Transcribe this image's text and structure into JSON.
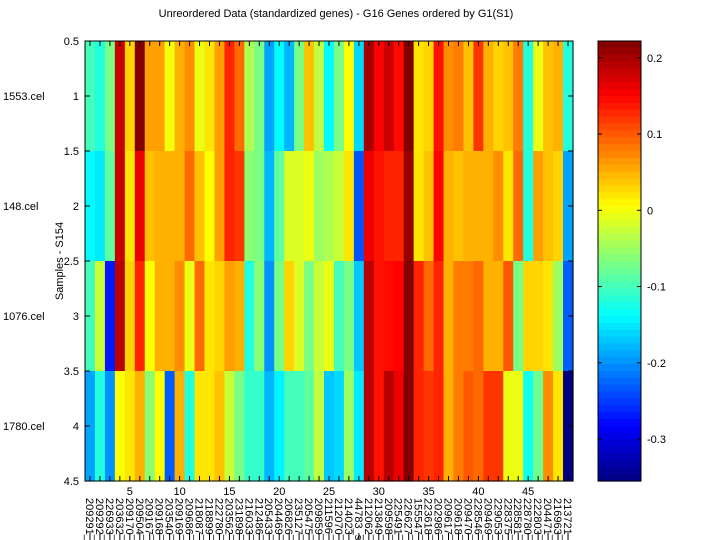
{
  "chart_data": {
    "type": "heatmap",
    "title": "Unreordered Data (standardized genes) - G16 Genes ordered by G1(S1)",
    "ylabel": "Samples - S154",
    "xlabel": "",
    "rows": [
      "1553.cel",
      "148.cel",
      "1076.cel",
      "1780.cel"
    ],
    "columns": [
      "209291_",
      "209292_",
      "226933_",
      "203632_",
      "209170_",
      "209504_",
      "209167_",
      "209168_",
      "203540_",
      "209169_",
      "209686_",
      "218087_",
      "218899_",
      "222780_",
      "203562_",
      "231898_",
      "216033_",
      "212486_",
      "205433_",
      "204469_",
      "206826_",
      "235127_",
      "205475_",
      "209859_",
      "211596_",
      "212070_",
      "214023_",
      "44783_s",
      "212062_",
      "213849_",
      "209598_",
      "225491_",
      "226627_",
      "155547_",
      "223618_",
      "202986_",
      "209617_",
      "209618_",
      "209470_",
      "228546_",
      "209469_",
      "229053_",
      "228375_",
      "228581_",
      "228780_",
      "222803_",
      "204471_",
      "216963_",
      "213721_"
    ],
    "x_ticks": [
      5,
      10,
      15,
      20,
      25,
      30,
      35,
      40,
      45
    ],
    "y_ticks": [
      "0.5",
      "1",
      "1.5",
      "2",
      "2.5",
      "3",
      "3.5",
      "4",
      "4.5"
    ],
    "y_tick_values": [
      0.5,
      1,
      1.5,
      2,
      2.5,
      3,
      3.5,
      4,
      4.5
    ],
    "colorbar": {
      "ticks": [
        "0.2",
        "0.1",
        "0",
        "-0.1",
        "-0.2",
        "-0.3"
      ],
      "tick_values": [
        0.2,
        0.1,
        0,
        -0.1,
        -0.2,
        -0.3
      ],
      "range": [
        -0.355,
        0.222
      ],
      "colormap": "jet"
    },
    "values": [
      [
        -0.1,
        -0.12,
        -0.07,
        0.18,
        0.03,
        0.22,
        0.06,
        0.06,
        0.0,
        0.05,
        0.07,
        -0.005,
        0.02,
        0.06,
        0.13,
        0.09,
        -0.04,
        -0.07,
        -0.19,
        -0.14,
        -0.18,
        -0.07,
        0.04,
        -0.03,
        -0.14,
        -0.07,
        0.005,
        -0.16,
        0.2,
        0.15,
        0.18,
        0.145,
        0.22,
        0.02,
        0.03,
        0.14,
        0.07,
        0.08,
        0.04,
        0.12,
        0.05,
        0.03,
        0.04,
        0.08,
        -0.12,
        -0.005,
        0.04,
        0.05,
        -0.12
      ],
      [
        -0.14,
        -0.15,
        -0.085,
        0.18,
        0.02,
        0.16,
        0.04,
        0.05,
        0.05,
        0.05,
        0.09,
        0.04,
        0.005,
        0.06,
        0.13,
        0.12,
        -0.06,
        -0.07,
        -0.18,
        -0.085,
        -0.015,
        -0.015,
        -0.005,
        -0.05,
        -0.04,
        -0.025,
        0.02,
        -0.235,
        0.16,
        0.14,
        0.13,
        0.13,
        0.21,
        0.02,
        0.04,
        0.15,
        0.05,
        0.04,
        0.05,
        0.05,
        0.05,
        0.07,
        0.02,
        0.09,
        -0.12,
        0.06,
        0.04,
        0.03,
        -0.19
      ],
      [
        -0.1,
        -0.025,
        -0.27,
        0.19,
        0.03,
        0.13,
        0.005,
        0.05,
        0.05,
        0.07,
        -0.005,
        0.09,
        0.02,
        0.03,
        0.06,
        0.05,
        -0.12,
        -0.06,
        -0.2,
        -0.07,
        0.03,
        -0.015,
        -0.07,
        -0.025,
        -0.005,
        -0.1,
        -0.07,
        -0.17,
        0.19,
        0.14,
        0.145,
        0.15,
        0.22,
        0.13,
        0.09,
        0.13,
        0.05,
        0.08,
        0.08,
        0.09,
        0.05,
        0.05,
        0.1,
        -0.07,
        0.03,
        0.03,
        0.02,
        -0.05,
        -0.23
      ],
      [
        -0.19,
        -0.12,
        -0.2,
        0.005,
        0.02,
        0.05,
        -0.06,
        0.005,
        -0.23,
        0.05,
        -0.12,
        0.02,
        0.02,
        0.04,
        -0.025,
        -0.07,
        -0.11,
        -0.11,
        -0.18,
        -0.145,
        -0.1,
        -0.1,
        -0.085,
        -0.03,
        -0.17,
        -0.16,
        -0.05,
        -0.15,
        0.19,
        0.14,
        0.19,
        0.16,
        0.22,
        0.13,
        0.12,
        0.13,
        0.05,
        0.08,
        0.1,
        0.09,
        0.12,
        0.12,
        -0.005,
        -0.005,
        -0.13,
        -0.075,
        0.07,
        0.02,
        -0.355
      ]
    ]
  }
}
